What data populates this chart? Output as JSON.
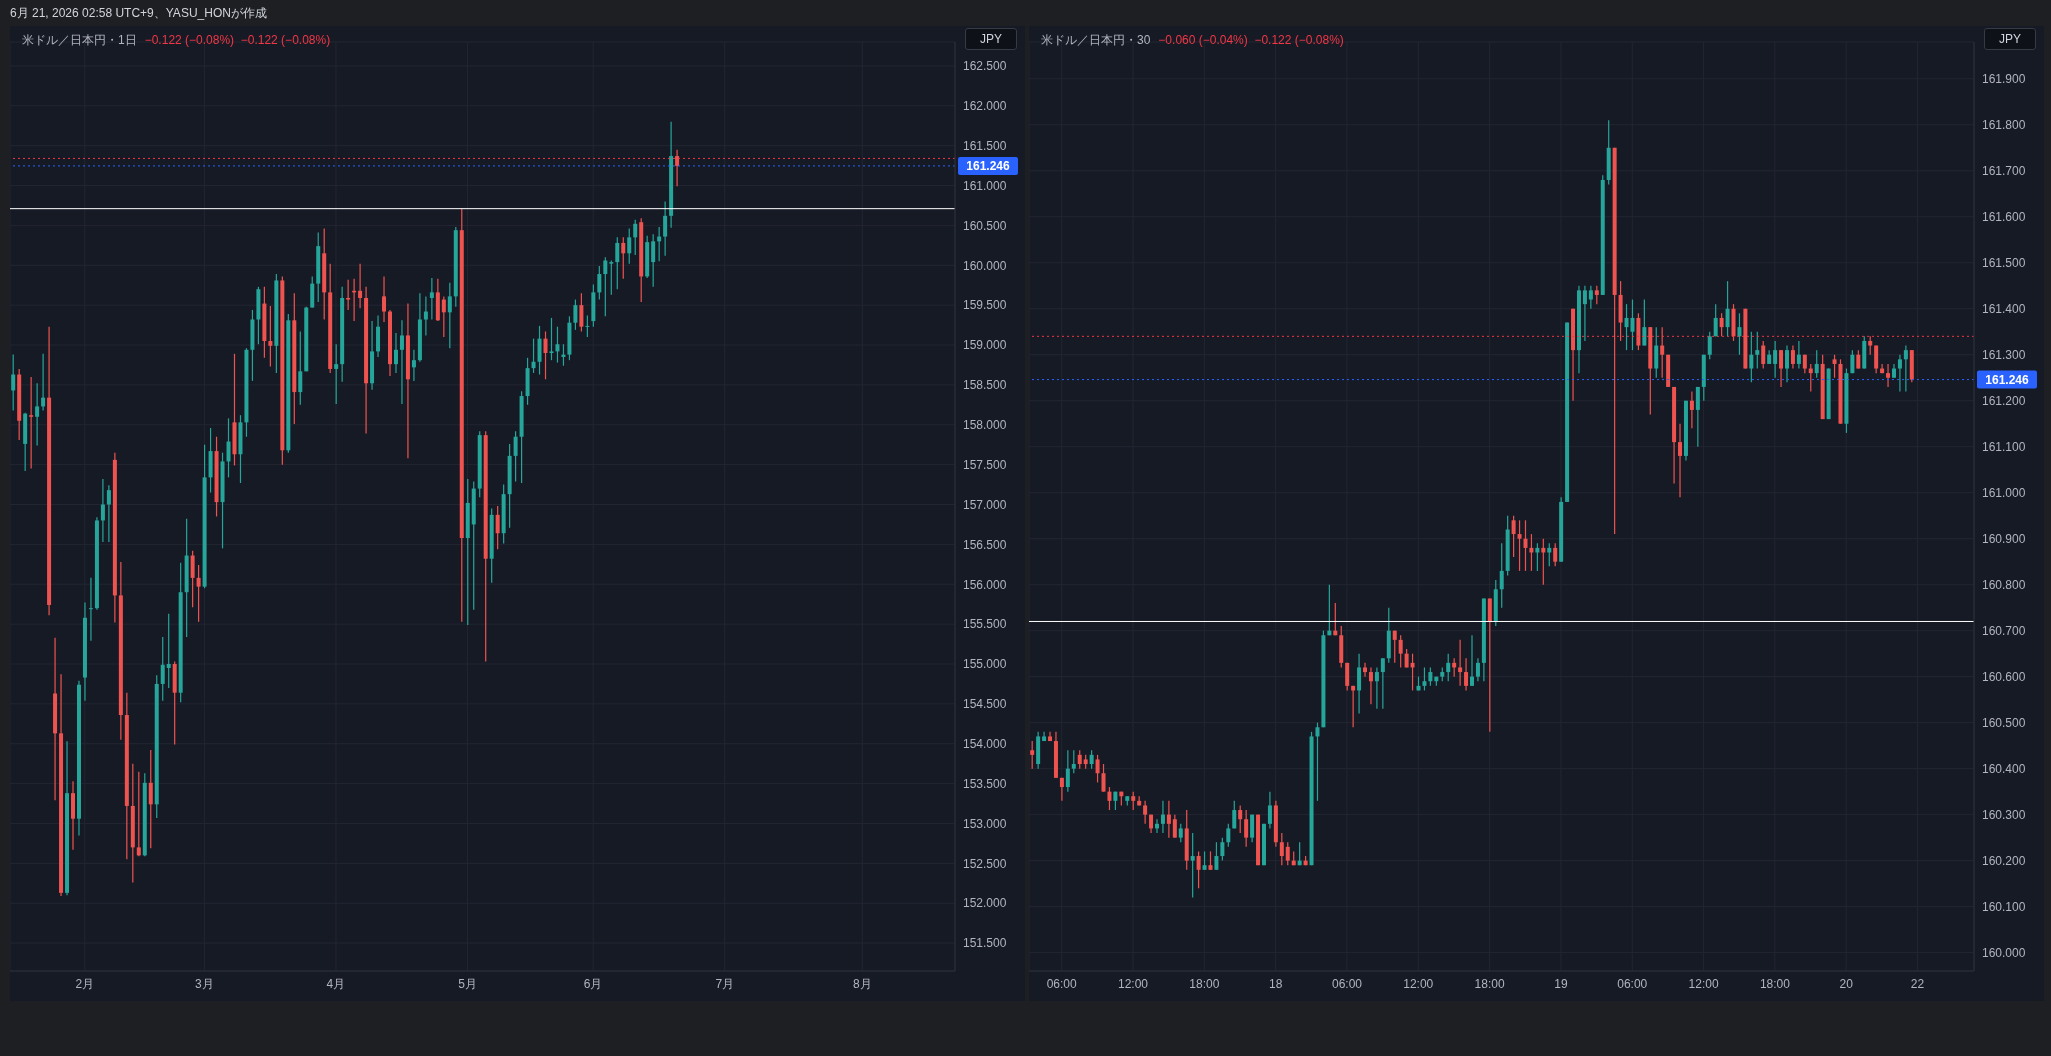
{
  "chart_data": [
    {
      "type": "candlestick",
      "title": "米ドル／日本円・1日",
      "subtitle": "−0.122 (−0.08%)  −0.122 (−0.08%)",
      "annotations": [
        "6月 21, 2026 02:58 UTC+9、YASU_HONが作成",
        "JPY"
      ],
      "categories": [
        null,
        null,
        null,
        null,
        null,
        null,
        null,
        null,
        null,
        null,
        null,
        null,
        "2月",
        null,
        null,
        null,
        null,
        null,
        null,
        null,
        null,
        null,
        null,
        null,
        null,
        null,
        null,
        null,
        null,
        null,
        null,
        null,
        "3月",
        null,
        null,
        null,
        null,
        null,
        null,
        null,
        null,
        null,
        null,
        null,
        null,
        null,
        null,
        null,
        null,
        null,
        null,
        null,
        null,
        null,
        "4月",
        null,
        null,
        null,
        null,
        null,
        null,
        null,
        null,
        null,
        null,
        null,
        null,
        null,
        null,
        null,
        null,
        null,
        null,
        null,
        null,
        null,
        "5月",
        null,
        null,
        null,
        null,
        null,
        null,
        null,
        null,
        null,
        null,
        null,
        null,
        null,
        null,
        null,
        null,
        null,
        null,
        null,
        null,
        "6月",
        null,
        null,
        null,
        null,
        null,
        null,
        null,
        null,
        null,
        null,
        null,
        null,
        null,
        null,
        null,
        null,
        null,
        null,
        null,
        null,
        null,
        "7月",
        null,
        null,
        null,
        null,
        null,
        null,
        null,
        null,
        null,
        null,
        null,
        null,
        null,
        null,
        null,
        null,
        null,
        null,
        null,
        null,
        null,
        null,
        "8月",
        null,
        null,
        null,
        null,
        null,
        null,
        null,
        null,
        null,
        null,
        null,
        null,
        null,
        null,
        null
      ],
      "ohlc": [
        [
          158.43,
          158.88,
          158.18,
          158.63
        ],
        [
          158.63,
          158.7,
          157.81,
          158.05
        ],
        [
          157.76,
          158.15,
          157.42,
          158.14
        ],
        [
          158.12,
          158.6,
          157.45,
          158.1
        ],
        [
          158.1,
          158.52,
          157.74,
          158.23
        ],
        [
          158.23,
          158.89,
          158.18,
          158.34
        ],
        [
          158.34,
          159.23,
          155.61,
          155.74
        ],
        [
          154.63,
          155.33,
          153.29,
          154.13
        ],
        [
          154.13,
          154.87,
          152.09,
          152.13
        ],
        [
          152.13,
          154.03,
          152.1,
          153.38
        ],
        [
          153.38,
          153.53,
          152.67,
          153.06
        ],
        [
          153.06,
          154.79,
          152.85,
          154.74
        ],
        [
          154.83,
          155.77,
          154.54,
          155.58
        ],
        [
          155.69,
          156.08,
          155.29,
          155.7
        ],
        [
          155.7,
          156.84,
          155.68,
          156.8
        ],
        [
          156.8,
          157.32,
          156.53,
          157.0
        ],
        [
          157.0,
          157.24,
          156.53,
          157.18
        ],
        [
          157.56,
          157.65,
          155.52,
          155.86
        ],
        [
          155.86,
          156.28,
          154.05,
          154.36
        ],
        [
          154.36,
          154.64,
          152.55,
          153.22
        ],
        [
          153.22,
          153.75,
          152.26,
          152.7
        ],
        [
          152.7,
          153.65,
          152.59,
          152.6
        ],
        [
          152.6,
          153.63,
          152.59,
          153.51
        ],
        [
          153.51,
          153.92,
          152.69,
          153.24
        ],
        [
          153.24,
          154.86,
          153.07,
          154.75
        ],
        [
          154.75,
          155.34,
          154.54,
          154.99
        ],
        [
          154.95,
          155.63,
          154.7,
          155.0
        ],
        [
          155.0,
          155.03,
          153.99,
          154.64
        ],
        [
          154.64,
          156.27,
          154.52,
          155.9
        ],
        [
          155.9,
          156.82,
          155.34,
          156.36
        ],
        [
          156.36,
          156.42,
          155.71,
          156.08
        ],
        [
          156.08,
          156.24,
          155.53,
          155.97
        ],
        [
          155.97,
          157.75,
          155.95,
          157.34
        ],
        [
          157.34,
          157.96,
          157.15,
          157.67
        ],
        [
          157.67,
          157.85,
          156.85,
          157.03
        ],
        [
          157.03,
          157.65,
          156.45,
          157.54
        ],
        [
          157.54,
          158.08,
          157.34,
          157.79
        ],
        [
          158.03,
          158.89,
          157.49,
          157.63
        ],
        [
          157.63,
          158.12,
          157.27,
          158.03
        ],
        [
          158.03,
          158.96,
          157.85,
          158.94
        ],
        [
          158.94,
          159.44,
          158.55,
          159.32
        ],
        [
          159.32,
          159.73,
          159.01,
          159.7
        ],
        [
          159.52,
          159.73,
          158.84,
          159.05
        ],
        [
          159.05,
          159.49,
          158.73,
          158.99
        ],
        [
          158.99,
          159.89,
          158.65,
          159.81
        ],
        [
          159.81,
          159.86,
          157.5,
          157.68
        ],
        [
          157.68,
          159.39,
          157.65,
          159.31
        ],
        [
          159.31,
          159.65,
          158.01,
          158.41
        ],
        [
          158.41,
          159.17,
          158.25,
          158.67
        ],
        [
          158.67,
          159.48,
          158.67,
          159.47
        ],
        [
          159.47,
          159.86,
          159.47,
          159.77
        ],
        [
          159.77,
          160.41,
          159.54,
          160.24
        ],
        [
          160.15,
          160.46,
          159.32,
          159.66
        ],
        [
          159.66,
          160.02,
          158.65,
          158.7
        ],
        [
          158.7,
          159.01,
          158.26,
          158.76
        ],
        [
          158.76,
          159.73,
          158.54,
          159.59
        ],
        [
          159.59,
          159.82,
          159.44,
          159.57
        ],
        [
          159.68,
          159.83,
          159.3,
          159.66
        ],
        [
          159.68,
          160.02,
          159.46,
          159.59
        ],
        [
          159.59,
          159.73,
          157.89,
          158.52
        ],
        [
          158.52,
          159.3,
          158.44,
          158.92
        ],
        [
          158.92,
          159.37,
          158.85,
          159.23
        ],
        [
          159.61,
          159.86,
          159.29,
          159.42
        ],
        [
          159.42,
          159.44,
          158.61,
          158.76
        ],
        [
          158.76,
          159.15,
          158.65,
          158.94
        ],
        [
          158.94,
          159.31,
          158.26,
          159.12
        ],
        [
          159.12,
          159.52,
          157.58,
          158.57
        ],
        [
          158.72,
          158.94,
          158.55,
          158.81
        ],
        [
          158.81,
          159.65,
          158.79,
          159.32
        ],
        [
          159.32,
          159.61,
          159.12,
          159.42
        ],
        [
          159.59,
          159.84,
          159.32,
          159.66
        ],
        [
          159.66,
          159.83,
          159.3,
          159.31
        ],
        [
          159.57,
          159.61,
          159.1,
          159.41
        ],
        [
          159.41,
          159.78,
          158.96,
          159.61
        ],
        [
          159.61,
          160.48,
          159.48,
          160.44
        ],
        [
          160.44,
          160.71,
          155.53,
          156.58
        ],
        [
          156.58,
          157.32,
          155.49,
          157.02
        ],
        [
          156.75,
          157.29,
          155.68,
          157.2
        ],
        [
          157.2,
          157.92,
          157.09,
          157.87
        ],
        [
          157.87,
          157.92,
          155.03,
          156.32
        ],
        [
          156.32,
          156.95,
          156.02,
          156.87
        ],
        [
          156.87,
          156.98,
          156.44,
          156.64
        ],
        [
          156.64,
          157.25,
          156.51,
          157.13
        ],
        [
          157.13,
          157.76,
          156.71,
          157.61
        ],
        [
          157.61,
          157.92,
          157.29,
          157.85
        ],
        [
          157.85,
          158.42,
          157.27,
          158.36
        ],
        [
          158.36,
          158.84,
          158.25,
          158.71
        ],
        [
          158.71,
          159.08,
          158.65,
          158.79
        ],
        [
          158.79,
          159.24,
          158.63,
          159.08
        ],
        [
          159.08,
          159.17,
          158.57,
          158.9
        ],
        [
          158.9,
          159.34,
          158.81,
          158.92
        ],
        [
          158.92,
          159.23,
          158.78,
          159.01
        ],
        [
          158.85,
          159.01,
          158.74,
          158.88
        ],
        [
          158.88,
          159.36,
          158.81,
          159.28
        ],
        [
          159.28,
          159.57,
          159.19,
          159.5
        ],
        [
          159.5,
          159.65,
          159.17,
          159.23
        ],
        [
          159.23,
          159.37,
          159.1,
          159.24
        ],
        [
          159.3,
          159.76,
          159.23,
          159.66
        ],
        [
          159.66,
          159.99,
          159.57,
          159.89
        ],
        [
          159.89,
          160.1,
          159.36,
          160.06
        ],
        [
          160.02,
          160.06,
          159.63,
          160.04
        ],
        [
          160.04,
          160.35,
          159.7,
          160.28
        ],
        [
          160.28,
          160.35,
          159.83,
          160.15
        ],
        [
          160.15,
          160.46,
          160.02,
          160.35
        ],
        [
          160.35,
          160.57,
          160.13,
          160.52
        ],
        [
          160.54,
          160.59,
          159.54,
          159.86
        ],
        [
          159.86,
          160.37,
          159.84,
          160.29
        ],
        [
          160.04,
          160.39,
          159.73,
          160.3
        ],
        [
          160.3,
          160.48,
          160.05,
          160.36
        ],
        [
          160.36,
          160.8,
          160.12,
          160.62
        ],
        [
          160.62,
          161.8,
          160.47,
          161.37
        ],
        [
          161.37,
          161.45,
          160.99,
          161.246
        ],
        null,
        null,
        null,
        null,
        null,
        null,
        null,
        null,
        null,
        null,
        null,
        null,
        null,
        null,
        null,
        null,
        null,
        null,
        null,
        null,
        null,
        null,
        null,
        null,
        null,
        null,
        null,
        null,
        null,
        null,
        null,
        null,
        null,
        null,
        null,
        null,
        null,
        null,
        null,
        null,
        null,
        null,
        null,
        null,
        null,
        null
      ],
      "colors": [
        "#26a69a",
        "#ef5350",
        "#26a69a",
        "#ef5350",
        "#26a69a",
        "#26a69a",
        "#ef5350",
        "#ef5350",
        "#ef5350",
        "#26a69a",
        "#ef5350",
        "#26a69a",
        "#26a69a",
        "#26a69a",
        "#26a69a",
        "#26a69a",
        "#26a69a",
        "#ef5350",
        "#ef5350",
        "#ef5350",
        "#ef5350",
        "#ef5350",
        "#26a69a",
        "#ef5350",
        "#26a69a",
        "#26a69a",
        "#26a69a",
        "#ef5350",
        "#26a69a",
        "#26a69a",
        "#ef5350",
        "#ef5350",
        "#26a69a",
        "#26a69a",
        "#ef5350",
        "#26a69a",
        "#26a69a",
        "#ef5350",
        "#26a69a",
        "#26a69a",
        "#26a69a",
        "#26a69a",
        "#ef5350",
        "#ef5350",
        "#26a69a",
        "#ef5350",
        "#26a69a",
        "#ef5350",
        "#26a69a",
        "#26a69a",
        "#26a69a",
        "#26a69a",
        "#ef5350",
        "#ef5350",
        "#26a69a",
        "#26a69a",
        "#ef5350",
        "#ef5350",
        "#ef5350",
        "#ef5350",
        "#26a69a",
        "#26a69a",
        "#ef5350",
        "#ef5350",
        "#26a69a",
        "#26a69a",
        "#ef5350",
        "#26a69a",
        "#26a69a",
        "#26a69a",
        "#26a69a",
        "#ef5350",
        "#ef5350",
        "#26a69a",
        "#26a69a",
        "#ef5350",
        "#26a69a",
        "#26a69a",
        "#26a69a",
        "#ef5350",
        "#26a69a",
        "#ef5350",
        "#26a69a",
        "#26a69a",
        "#26a69a",
        "#26a69a",
        "#26a69a",
        "#26a69a",
        "#26a69a",
        "#ef5350",
        "#26a69a",
        "#26a69a",
        "#26a69a",
        "#26a69a",
        "#26a69a",
        "#ef5350",
        "#26a69a",
        "#26a69a",
        "#26a69a",
        "#26a69a",
        "#26a69a",
        "#26a69a",
        "#ef5350",
        "#26a69a",
        "#26a69a",
        "#ef5350",
        "#26a69a",
        "#26a69a",
        "#26a69a",
        "#26a69a",
        "#26a69a",
        "#ef5350",
        null,
        null,
        null,
        null,
        null,
        null,
        null,
        null,
        null,
        null,
        null,
        null,
        null,
        null,
        null,
        null,
        null,
        null,
        null,
        null,
        null,
        null,
        null,
        null,
        null,
        null,
        null,
        null,
        null,
        null,
        null,
        null,
        null,
        null,
        null,
        null,
        null,
        null,
        null,
        null,
        null,
        null,
        null,
        null,
        null,
        null
      ],
      "ylim": [
        151.15,
        162.8
      ],
      "yticks": [
        {
          "value": 151.5,
          "label": "151.500"
        },
        {
          "value": 152,
          "label": "152.000"
        },
        {
          "value": 152.5,
          "label": "152.500"
        },
        {
          "value": 153,
          "label": "153.000"
        },
        {
          "value": 153.5,
          "label": "153.500"
        },
        {
          "value": 154,
          "label": "154.000"
        },
        {
          "value": 154.5,
          "label": "154.500"
        },
        {
          "value": 155,
          "label": "155.000"
        },
        {
          "value": 155.5,
          "label": "155.500"
        },
        {
          "value": 156,
          "label": "156.000"
        },
        {
          "value": 156.5,
          "label": "156.500"
        },
        {
          "value": 157,
          "label": "157.000"
        },
        {
          "value": 157.5,
          "label": "157.500"
        },
        {
          "value": 158,
          "label": "158.000"
        },
        {
          "value": 158.5,
          "label": "158.500"
        },
        {
          "value": 159,
          "label": "159.000"
        },
        {
          "value": 159.5,
          "label": "159.500"
        },
        {
          "value": 160,
          "label": "160.000"
        },
        {
          "value": 160.5,
          "label": "160.500"
        },
        {
          "value": 161,
          "label": "161.000"
        },
        {
          "value": 161.5,
          "label": "161.500"
        },
        {
          "value": 162,
          "label": "162.000"
        },
        {
          "value": 162.5,
          "label": "162.500"
        }
      ],
      "ref_lines": [
        {
          "axis": "y",
          "value": 161.34,
          "color": "#f23645",
          "line_style": "dotted"
        },
        {
          "axis": "y",
          "value": 161.246,
          "label": "161.246",
          "color": "#2962ff",
          "line_style": "dotted"
        },
        {
          "axis": "y",
          "value": 160.71,
          "color": "#ffffff",
          "line_style": "solid"
        }
      ],
      "grid": true
    },
    {
      "type": "candlestick",
      "title": "米ドル／日本円・30",
      "subtitle": "−0.060 (−0.04%)  −0.122 (−0.08%)",
      "annotations": [
        "JPY"
      ],
      "categories": [
        null,
        null,
        null,
        null,
        null,
        "06:00",
        null,
        null,
        null,
        null,
        null,
        null,
        null,
        null,
        null,
        null,
        null,
        "12:00",
        null,
        null,
        null,
        null,
        null,
        null,
        null,
        null,
        null,
        null,
        null,
        "18:00",
        null,
        null,
        null,
        null,
        null,
        null,
        null,
        null,
        null,
        null,
        null,
        "18",
        null,
        null,
        null,
        null,
        null,
        null,
        null,
        null,
        null,
        null,
        null,
        "06:00",
        null,
        null,
        null,
        null,
        null,
        null,
        null,
        null,
        null,
        null,
        null,
        "12:00",
        null,
        null,
        null,
        null,
        null,
        null,
        null,
        null,
        null,
        null,
        null,
        "18:00",
        null,
        null,
        null,
        null,
        null,
        null,
        null,
        null,
        null,
        null,
        null,
        "19",
        null,
        null,
        null,
        null,
        null,
        null,
        null,
        null,
        null,
        null,
        null,
        "06:00",
        null,
        null,
        null,
        null,
        null,
        null,
        null,
        null,
        null,
        null,
        null,
        "12:00",
        null,
        null,
        null,
        null,
        null,
        null,
        null,
        null,
        null,
        null,
        null,
        "18:00",
        null,
        null,
        null,
        null,
        null,
        null,
        null,
        null,
        null,
        null,
        null,
        "20",
        null,
        null,
        null,
        null,
        null,
        null,
        null,
        null,
        null,
        null,
        null,
        "22",
        null,
        null,
        null,
        null,
        null,
        null,
        null,
        null,
        null
      ],
      "ohlc": [
        [
          160.44,
          160.46,
          160.4,
          160.43
        ],
        [
          160.41,
          160.48,
          160.4,
          160.47
        ],
        [
          160.46,
          160.48,
          160.46,
          160.47
        ],
        [
          160.47,
          160.48,
          160.46,
          160.46
        ],
        [
          160.46,
          160.48,
          160.38,
          160.38
        ],
        [
          160.38,
          160.38,
          160.33,
          160.36
        ],
        [
          160.36,
          160.44,
          160.35,
          160.4
        ],
        [
          160.4,
          160.44,
          160.39,
          160.41
        ],
        [
          160.43,
          160.44,
          160.4,
          160.41
        ],
        [
          160.42,
          160.43,
          160.4,
          160.41
        ],
        [
          160.41,
          160.44,
          160.4,
          160.43
        ],
        [
          160.42,
          160.43,
          160.37,
          160.39
        ],
        [
          160.39,
          160.41,
          160.35,
          160.35
        ],
        [
          160.35,
          160.36,
          160.31,
          160.33
        ],
        [
          160.33,
          160.35,
          160.31,
          160.35
        ],
        [
          160.35,
          160.35,
          160.32,
          160.34
        ],
        [
          160.33,
          160.34,
          160.32,
          160.34
        ],
        [
          160.34,
          160.35,
          160.31,
          160.33
        ],
        [
          160.33,
          160.34,
          160.32,
          160.32
        ],
        [
          160.32,
          160.33,
          160.28,
          160.3
        ],
        [
          160.3,
          160.3,
          160.26,
          160.27
        ],
        [
          160.27,
          160.29,
          160.26,
          160.28
        ],
        [
          160.28,
          160.33,
          160.26,
          160.3
        ],
        [
          160.3,
          160.33,
          160.25,
          160.28
        ],
        [
          160.29,
          160.3,
          160.25,
          160.25
        ],
        [
          160.25,
          160.28,
          160.24,
          160.27
        ],
        [
          160.27,
          160.31,
          160.18,
          160.2
        ],
        [
          160.2,
          160.26,
          160.12,
          160.21
        ],
        [
          160.21,
          160.22,
          160.14,
          160.18
        ],
        [
          160.18,
          160.22,
          160.18,
          160.19
        ],
        [
          160.19,
          160.22,
          160.18,
          160.18
        ],
        [
          160.18,
          160.24,
          160.18,
          160.21
        ],
        [
          160.21,
          160.25,
          160.2,
          160.24
        ],
        [
          160.24,
          160.28,
          160.23,
          160.27
        ],
        [
          160.27,
          160.33,
          160.27,
          160.31
        ],
        [
          160.31,
          160.32,
          160.26,
          160.29
        ],
        [
          160.29,
          160.31,
          160.23,
          160.25
        ],
        [
          160.25,
          160.3,
          160.24,
          160.3
        ],
        [
          160.3,
          160.3,
          160.19,
          160.19
        ],
        [
          160.19,
          160.28,
          160.19,
          160.28
        ],
        [
          160.28,
          160.35,
          160.27,
          160.32
        ],
        [
          160.32,
          160.33,
          160.23,
          160.24
        ],
        [
          160.24,
          160.26,
          160.19,
          160.21
        ],
        [
          160.23,
          160.24,
          160.19,
          160.2
        ],
        [
          160.2,
          160.22,
          160.19,
          160.19
        ],
        [
          160.19,
          160.24,
          160.19,
          160.2
        ],
        [
          160.2,
          160.21,
          160.19,
          160.19
        ],
        [
          160.19,
          160.48,
          160.19,
          160.47
        ],
        [
          160.47,
          160.5,
          160.33,
          160.49
        ],
        [
          160.49,
          160.7,
          160.49,
          160.69
        ],
        [
          160.69,
          160.8,
          160.69,
          160.7
        ],
        [
          160.7,
          160.76,
          160.69,
          160.69
        ],
        [
          160.69,
          160.71,
          160.62,
          160.63
        ],
        [
          160.63,
          160.63,
          160.57,
          160.58
        ],
        [
          160.58,
          160.58,
          160.49,
          160.57
        ],
        [
          160.57,
          160.65,
          160.52,
          160.62
        ],
        [
          160.62,
          160.63,
          160.6,
          160.61
        ],
        [
          160.61,
          160.62,
          160.54,
          160.59
        ],
        [
          160.59,
          160.62,
          160.53,
          160.61
        ],
        [
          160.61,
          160.64,
          160.53,
          160.64
        ],
        [
          160.64,
          160.75,
          160.63,
          160.7
        ],
        [
          160.7,
          160.7,
          160.63,
          160.68
        ],
        [
          160.68,
          160.69,
          160.62,
          160.65
        ],
        [
          160.65,
          160.66,
          160.62,
          160.62
        ],
        [
          160.63,
          160.65,
          160.57,
          160.62
        ],
        [
          160.57,
          160.6,
          160.57,
          160.58
        ],
        [
          160.58,
          160.62,
          160.57,
          160.59
        ],
        [
          160.59,
          160.62,
          160.58,
          160.61
        ],
        [
          160.59,
          160.6,
          160.58,
          160.6
        ],
        [
          160.6,
          160.62,
          160.59,
          160.61
        ],
        [
          160.61,
          160.65,
          160.59,
          160.63
        ],
        [
          160.63,
          160.64,
          160.6,
          160.62
        ],
        [
          160.62,
          160.68,
          160.58,
          160.61
        ],
        [
          160.61,
          160.64,
          160.57,
          160.58
        ],
        [
          160.58,
          160.69,
          160.58,
          160.6
        ],
        [
          160.6,
          160.64,
          160.59,
          160.63
        ],
        [
          160.63,
          160.77,
          160.59,
          160.77
        ],
        [
          160.77,
          160.77,
          160.48,
          160.72
        ],
        [
          160.72,
          160.81,
          160.71,
          160.79
        ],
        [
          160.79,
          160.89,
          160.75,
          160.83
        ],
        [
          160.83,
          160.95,
          160.82,
          160.92
        ],
        [
          160.94,
          160.95,
          160.86,
          160.91
        ],
        [
          160.91,
          160.94,
          160.83,
          160.9
        ],
        [
          160.9,
          160.94,
          160.83,
          160.88
        ],
        [
          160.88,
          160.91,
          160.83,
          160.87
        ],
        [
          160.87,
          160.89,
          160.83,
          160.88
        ],
        [
          160.88,
          160.9,
          160.8,
          160.87
        ],
        [
          160.87,
          160.89,
          160.84,
          160.88
        ],
        [
          160.88,
          160.89,
          160.84,
          160.85
        ],
        [
          160.85,
          160.99,
          160.85,
          160.98
        ],
        [
          160.98,
          161.37,
          160.98,
          161.37
        ],
        [
          161.4,
          161.4,
          161.2,
          161.31
        ],
        [
          161.31,
          161.45,
          161.26,
          161.44
        ],
        [
          161.41,
          161.45,
          161.33,
          161.44
        ],
        [
          161.42,
          161.45,
          161.4,
          161.44
        ],
        [
          161.44,
          161.45,
          161.41,
          161.43
        ],
        [
          161.43,
          161.69,
          161.43,
          161.68
        ],
        [
          161.68,
          161.81,
          161.67,
          161.75
        ],
        [
          161.75,
          161.75,
          160.91,
          161.43
        ],
        [
          161.43,
          161.46,
          161.33,
          161.37
        ],
        [
          161.36,
          161.41,
          161.31,
          161.38
        ],
        [
          161.35,
          161.42,
          161.31,
          161.38
        ],
        [
          161.38,
          161.39,
          161.31,
          161.32
        ],
        [
          161.32,
          161.42,
          161.32,
          161.36
        ],
        [
          161.36,
          161.36,
          161.17,
          161.27
        ],
        [
          161.27,
          161.36,
          161.25,
          161.32
        ],
        [
          161.32,
          161.36,
          161.25,
          161.3
        ],
        [
          161.3,
          161.3,
          161.23,
          161.23
        ],
        [
          161.23,
          161.23,
          161.02,
          161.11
        ],
        [
          161.11,
          161.15,
          160.99,
          161.08
        ],
        [
          161.08,
          161.2,
          161.07,
          161.2
        ],
        [
          161.2,
          161.22,
          161.14,
          161.18
        ],
        [
          161.18,
          161.23,
          161.1,
          161.23
        ],
        [
          161.23,
          161.3,
          161.2,
          161.3
        ],
        [
          161.3,
          161.35,
          161.29,
          161.34
        ],
        [
          161.34,
          161.41,
          161.34,
          161.38
        ],
        [
          161.38,
          161.39,
          161.34,
          161.36
        ],
        [
          161.36,
          161.46,
          161.34,
          161.4
        ],
        [
          161.4,
          161.41,
          161.33,
          161.34
        ],
        [
          161.34,
          161.39,
          161.3,
          161.36
        ],
        [
          161.4,
          161.4,
          161.27,
          161.27
        ],
        [
          161.27,
          161.35,
          161.24,
          161.3
        ],
        [
          161.3,
          161.35,
          161.27,
          161.31
        ],
        [
          161.32,
          161.33,
          161.27,
          161.28
        ],
        [
          161.28,
          161.31,
          161.28,
          161.3
        ],
        [
          161.28,
          161.33,
          161.25,
          161.31
        ],
        [
          161.31,
          161.31,
          161.23,
          161.27
        ],
        [
          161.27,
          161.32,
          161.24,
          161.31
        ],
        [
          161.31,
          161.32,
          161.27,
          161.28
        ],
        [
          161.28,
          161.33,
          161.27,
          161.3
        ],
        [
          161.3,
          161.3,
          161.26,
          161.27
        ],
        [
          161.27,
          161.28,
          161.22,
          161.26
        ],
        [
          161.26,
          161.31,
          161.25,
          161.28
        ],
        [
          161.28,
          161.3,
          161.16,
          161.16
        ],
        [
          161.16,
          161.27,
          161.16,
          161.27
        ],
        [
          161.29,
          161.3,
          161.25,
          161.28
        ],
        [
          161.28,
          161.29,
          161.15,
          161.15
        ],
        [
          161.15,
          161.27,
          161.13,
          161.26
        ],
        [
          161.26,
          161.31,
          161.26,
          161.3
        ],
        [
          161.3,
          161.31,
          161.27,
          161.27
        ],
        [
          161.27,
          161.34,
          161.27,
          161.33
        ],
        [
          161.33,
          161.34,
          161.3,
          161.32
        ],
        [
          161.32,
          161.32,
          161.26,
          161.27
        ],
        [
          161.27,
          161.28,
          161.26,
          161.26
        ],
        [
          161.26,
          161.28,
          161.23,
          161.25
        ],
        [
          161.25,
          161.28,
          161.25,
          161.27
        ],
        [
          161.27,
          161.3,
          161.22,
          161.29
        ],
        [
          161.29,
          161.32,
          161.22,
          161.31
        ],
        [
          161.31,
          161.31,
          161.24,
          161.246
        ],
        null,
        null,
        null,
        null,
        null,
        null,
        null,
        null,
        null,
        null
      ],
      "colors": [
        "#ef5350",
        "#26a69a",
        "#26a69a",
        "#ef5350",
        "#ef5350",
        "#ef5350",
        "#26a69a",
        "#26a69a",
        "#ef5350",
        "#ef5350",
        "#26a69a",
        "#ef5350",
        "#ef5350",
        "#ef5350",
        "#26a69a",
        "#ef5350",
        "#26a69a",
        "#ef5350",
        "#ef5350",
        "#ef5350",
        "#ef5350",
        "#26a69a",
        "#26a69a",
        "#ef5350",
        "#ef5350",
        "#26a69a",
        "#ef5350",
        "#26a69a",
        "#ef5350",
        "#26a69a",
        "#ef5350",
        "#26a69a",
        "#26a69a",
        "#26a69a",
        "#26a69a",
        "#ef5350",
        "#ef5350",
        "#26a69a",
        "#ef5350",
        "#26a69a",
        "#26a69a",
        "#ef5350",
        "#ef5350",
        "#ef5350",
        "#ef5350",
        "#26a69a",
        "#ef5350",
        "#26a69a",
        "#26a69a",
        "#26a69a",
        "#26a69a",
        "#ef5350",
        "#ef5350",
        "#ef5350",
        "#ef5350",
        "#26a69a",
        "#ef5350",
        "#ef5350",
        "#26a69a",
        "#26a69a",
        "#26a69a",
        "#ef5350",
        "#ef5350",
        "#ef5350",
        "#ef5350",
        "#26a69a",
        "#26a69a",
        "#26a69a",
        "#26a69a",
        "#26a69a",
        "#26a69a",
        "#ef5350",
        "#ef5350",
        "#ef5350",
        "#26a69a",
        "#26a69a",
        "#26a69a",
        "#ef5350",
        "#26a69a",
        "#26a69a",
        "#26a69a",
        "#ef5350",
        "#ef5350",
        "#ef5350",
        "#ef5350",
        "#26a69a",
        "#ef5350",
        "#26a69a",
        "#ef5350",
        "#26a69a",
        "#26a69a",
        "#ef5350",
        "#26a69a",
        "#26a69a",
        "#26a69a",
        "#ef5350",
        "#26a69a",
        "#26a69a",
        "#ef5350",
        "#ef5350",
        "#26a69a",
        "#26a69a",
        "#ef5350",
        "#26a69a",
        "#ef5350",
        "#26a69a",
        "#ef5350",
        "#ef5350",
        "#ef5350",
        "#ef5350",
        "#26a69a",
        "#ef5350",
        "#26a69a",
        "#26a69a",
        "#26a69a",
        "#26a69a",
        "#ef5350",
        "#26a69a",
        "#ef5350",
        "#26a69a",
        "#ef5350",
        "#26a69a",
        "#26a69a",
        "#ef5350",
        "#26a69a",
        "#26a69a",
        "#ef5350",
        "#26a69a",
        "#ef5350",
        "#26a69a",
        "#ef5350",
        "#ef5350",
        "#26a69a",
        "#ef5350",
        "#26a69a",
        "#ef5350",
        "#ef5350",
        "#26a69a",
        "#26a69a",
        "#ef5350",
        "#26a69a",
        "#ef5350",
        "#ef5350",
        "#ef5350",
        "#ef5350",
        "#26a69a",
        "#26a69a",
        "#26a69a",
        "#ef5350",
        null,
        null,
        null,
        null,
        null,
        null,
        null,
        null,
        null,
        null
      ],
      "ylim": [
        159.96,
        161.98
      ],
      "yticks": [
        {
          "value": 160,
          "label": "160.000"
        },
        {
          "value": 160.1,
          "label": "160.100"
        },
        {
          "value": 160.2,
          "label": "160.200"
        },
        {
          "value": 160.3,
          "label": "160.300"
        },
        {
          "value": 160.4,
          "label": "160.400"
        },
        {
          "value": 160.5,
          "label": "160.500"
        },
        {
          "value": 160.6,
          "label": "160.600"
        },
        {
          "value": 160.7,
          "label": "160.700"
        },
        {
          "value": 160.8,
          "label": "160.800"
        },
        {
          "value": 160.9,
          "label": "160.900"
        },
        {
          "value": 161,
          "label": "161.000"
        },
        {
          "value": 161.1,
          "label": "161.100"
        },
        {
          "value": 161.2,
          "label": "161.200"
        },
        {
          "value": 161.3,
          "label": "161.300"
        },
        {
          "value": 161.4,
          "label": "161.400"
        },
        {
          "value": 161.5,
          "label": "161.500"
        },
        {
          "value": 161.6,
          "label": "161.600"
        },
        {
          "value": 161.7,
          "label": "161.700"
        },
        {
          "value": 161.8,
          "label": "161.800"
        },
        {
          "value": 161.9,
          "label": "161.900"
        }
      ],
      "ref_lines": [
        {
          "axis": "y",
          "value": 161.34,
          "color": "#f23645",
          "line_style": "dotted"
        },
        {
          "axis": "y",
          "value": 161.246,
          "label": "161.246",
          "color": "#2962ff",
          "line_style": "dotted"
        },
        {
          "axis": "y",
          "value": 160.72,
          "color": "#ffffff",
          "line_style": "solid"
        }
      ],
      "grid": true
    }
  ]
}
